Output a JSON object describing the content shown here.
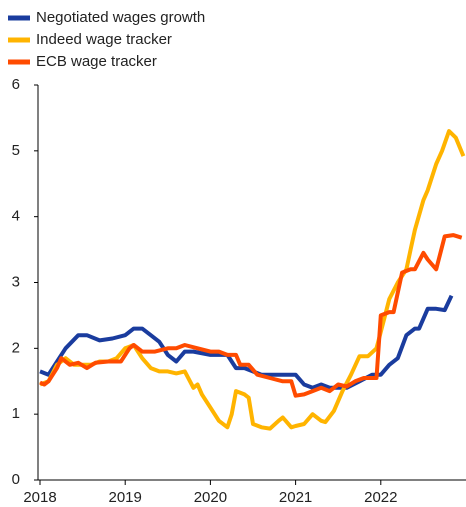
{
  "chart_data": {
    "type": "line",
    "xlim": [
      2018,
      2023
    ],
    "xticks": [
      2018,
      2019,
      2020,
      2021,
      2022
    ],
    "ylim": [
      0,
      6
    ],
    "yticks": [
      0,
      1,
      2,
      3,
      4,
      5,
      6
    ],
    "legend": "top-left",
    "series": [
      {
        "name": "Negotiated wages growth",
        "color": "#1a3c9e",
        "x": [
          2018.0,
          2018.1,
          2018.3,
          2018.45,
          2018.55,
          2018.7,
          2018.85,
          2019.0,
          2019.1,
          2019.2,
          2019.3,
          2019.4,
          2019.5,
          2019.6,
          2019.7,
          2019.8,
          2020.0,
          2020.2,
          2020.3,
          2020.4,
          2020.6,
          2020.8,
          2021.0,
          2021.1,
          2021.2,
          2021.3,
          2021.4,
          2021.5,
          2021.6,
          2021.75,
          2021.9,
          2022.0,
          2022.1,
          2022.2,
          2022.3,
          2022.4,
          2022.45,
          2022.55,
          2022.65,
          2022.75,
          2022.83
        ],
        "values": [
          1.65,
          1.6,
          2.0,
          2.2,
          2.2,
          2.12,
          2.15,
          2.2,
          2.3,
          2.3,
          2.2,
          2.1,
          1.9,
          1.8,
          1.95,
          1.95,
          1.9,
          1.9,
          1.7,
          1.7,
          1.6,
          1.6,
          1.6,
          1.45,
          1.4,
          1.45,
          1.4,
          1.4,
          1.4,
          1.5,
          1.6,
          1.6,
          1.75,
          1.85,
          2.2,
          2.3,
          2.3,
          2.6,
          2.6,
          2.58,
          2.8
        ]
      },
      {
        "name": "Indeed wage tracker",
        "color": "#ffb400",
        "x": [
          2018.0,
          2018.1,
          2018.2,
          2018.3,
          2018.4,
          2018.5,
          2018.6,
          2018.7,
          2018.8,
          2018.9,
          2019.0,
          2019.1,
          2019.2,
          2019.3,
          2019.4,
          2019.5,
          2019.6,
          2019.7,
          2019.8,
          2019.85,
          2019.9,
          2020.0,
          2020.1,
          2020.2,
          2020.25,
          2020.3,
          2020.4,
          2020.45,
          2020.5,
          2020.6,
          2020.7,
          2020.8,
          2020.85,
          2020.95,
          2021.0,
          2021.1,
          2021.2,
          2021.3,
          2021.35,
          2021.45,
          2021.55,
          2021.65,
          2021.75,
          2021.85,
          2021.95,
          2022.05,
          2022.1,
          2022.2,
          2022.3,
          2022.35,
          2022.4,
          2022.5,
          2022.55,
          2022.65,
          2022.72,
          2022.8,
          2022.88,
          2022.97
        ],
        "values": [
          1.45,
          1.5,
          1.75,
          1.85,
          1.75,
          1.75,
          1.75,
          1.8,
          1.8,
          1.85,
          2.0,
          2.05,
          1.85,
          1.7,
          1.65,
          1.65,
          1.62,
          1.65,
          1.4,
          1.45,
          1.3,
          1.1,
          0.9,
          0.8,
          1.0,
          1.35,
          1.3,
          1.25,
          0.85,
          0.8,
          0.78,
          0.9,
          0.95,
          0.8,
          0.82,
          0.85,
          1.0,
          0.9,
          0.88,
          1.05,
          1.35,
          1.6,
          1.88,
          1.88,
          2.0,
          2.5,
          2.75,
          3.0,
          3.2,
          3.5,
          3.8,
          4.25,
          4.4,
          4.8,
          5.0,
          5.3,
          5.2,
          4.92
        ]
      },
      {
        "name": "ECB wage tracker",
        "color": "#ff4b00",
        "x": [
          2018.0,
          2018.05,
          2018.1,
          2018.2,
          2018.25,
          2018.35,
          2018.45,
          2018.55,
          2018.65,
          2018.8,
          2018.95,
          2019.05,
          2019.1,
          2019.2,
          2019.35,
          2019.5,
          2019.6,
          2019.7,
          2019.85,
          2020.0,
          2020.1,
          2020.2,
          2020.3,
          2020.35,
          2020.45,
          2020.55,
          2020.7,
          2020.85,
          2020.95,
          2021.0,
          2021.1,
          2021.2,
          2021.3,
          2021.4,
          2021.5,
          2021.6,
          2021.7,
          2021.8,
          2021.95,
          2022.0,
          2022.1,
          2022.15,
          2022.25,
          2022.35,
          2022.4,
          2022.5,
          2022.55,
          2022.65,
          2022.75,
          2022.85,
          2022.95
        ],
        "values": [
          1.48,
          1.45,
          1.5,
          1.7,
          1.85,
          1.75,
          1.78,
          1.7,
          1.78,
          1.8,
          1.8,
          2.0,
          2.05,
          1.95,
          1.95,
          2.0,
          2.0,
          2.05,
          2.0,
          1.95,
          1.95,
          1.9,
          1.9,
          1.75,
          1.75,
          1.6,
          1.55,
          1.5,
          1.5,
          1.28,
          1.3,
          1.35,
          1.4,
          1.35,
          1.45,
          1.42,
          1.5,
          1.55,
          1.55,
          2.5,
          2.55,
          2.55,
          3.15,
          3.2,
          3.2,
          3.45,
          3.35,
          3.2,
          3.7,
          3.72,
          3.68
        ]
      }
    ]
  }
}
